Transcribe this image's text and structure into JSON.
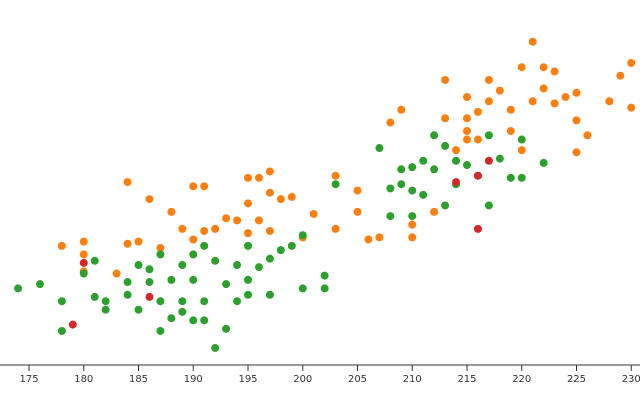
{
  "chart_data": {
    "type": "scatter",
    "xlim": [
      172.35,
      230.8
    ],
    "ylim": [
      2500,
      6790
    ],
    "xticks": [
      175,
      180,
      185,
      190,
      195,
      200,
      205,
      210,
      215,
      220,
      225,
      230
    ],
    "series": [
      {
        "color": "#ff7f0e",
        "x": [
          178,
          180,
          180,
          180,
          184,
          186,
          183,
          184,
          185,
          187,
          188,
          189,
          190,
          191,
          190,
          191,
          192,
          193,
          194,
          195,
          195,
          196,
          197,
          197,
          198,
          199,
          196,
          195,
          197,
          200,
          201,
          203,
          203,
          205,
          205,
          206,
          207,
          208,
          209,
          210,
          210,
          212,
          213,
          213,
          215,
          215,
          215,
          215,
          216,
          217,
          217,
          218,
          219,
          220,
          221,
          221,
          222,
          222,
          223,
          223,
          224,
          225,
          225,
          225,
          226,
          228,
          229,
          230,
          230,
          219,
          220,
          214,
          216
        ],
        "y": [
          3900,
          3950,
          3800,
          3600,
          4650,
          4450,
          3575,
          3925,
          3950,
          3875,
          4300,
          4100,
          4600,
          4600,
          3975,
          4075,
          4100,
          4225,
          4200,
          4700,
          4400,
          4700,
          4775,
          4525,
          4450,
          4475,
          4200,
          4050,
          4075,
          4000,
          4275,
          4725,
          4100,
          4550,
          4300,
          3975,
          4000,
          5350,
          5500,
          4150,
          4000,
          4300,
          5850,
          5400,
          5650,
          5400,
          5250,
          5150,
          5475,
          5850,
          5600,
          5725,
          5500,
          6000,
          6300,
          5600,
          6000,
          5750,
          5950,
          5575,
          5650,
          5700,
          5375,
          5000,
          5200,
          5600,
          5900,
          6050,
          5525,
          5250,
          5025,
          5025,
          5150
        ]
      },
      {
        "color": "#2ca02c",
        "x": [
          174,
          176,
          178,
          178,
          180,
          181,
          181,
          182,
          184,
          184,
          185,
          185,
          186,
          186,
          187,
          187,
          187,
          188,
          188,
          189,
          189,
          190,
          190,
          191,
          191,
          191,
          192,
          192,
          193,
          193,
          194,
          195,
          195,
          196,
          197,
          197,
          198,
          199,
          200,
          200,
          202,
          202,
          203,
          207,
          208,
          208,
          209,
          209,
          210,
          210,
          210,
          211,
          211,
          212,
          212,
          213,
          213,
          214,
          214,
          215,
          216,
          217,
          217,
          218,
          219,
          220,
          220,
          222,
          195,
          194,
          182,
          189,
          190
        ],
        "y": [
          3400,
          3450,
          3250,
          2900,
          3575,
          3725,
          3300,
          3150,
          3475,
          3325,
          3675,
          3150,
          3625,
          3475,
          3800,
          3250,
          2900,
          3500,
          3050,
          3675,
          3250,
          3800,
          3500,
          3900,
          3250,
          3025,
          3725,
          2700,
          3450,
          2925,
          3675,
          3325,
          3500,
          3650,
          3750,
          3325,
          3850,
          3900,
          4025,
          3400,
          3550,
          3400,
          4625,
          5050,
          4575,
          4250,
          4800,
          4625,
          4825,
          4550,
          4250,
          4900,
          4500,
          5200,
          4800,
          5075,
          4375,
          4900,
          4625,
          4850,
          4725,
          5200,
          4375,
          4925,
          4700,
          5150,
          4700,
          4875,
          3900,
          3250,
          3250,
          3125,
          3025
        ]
      },
      {
        "color": "#d62728",
        "x": [
          179,
          180,
          186,
          214,
          216,
          216,
          217
        ],
        "y": [
          2975,
          3700,
          3300,
          4650,
          4725,
          4100,
          4900
        ]
      }
    ]
  }
}
